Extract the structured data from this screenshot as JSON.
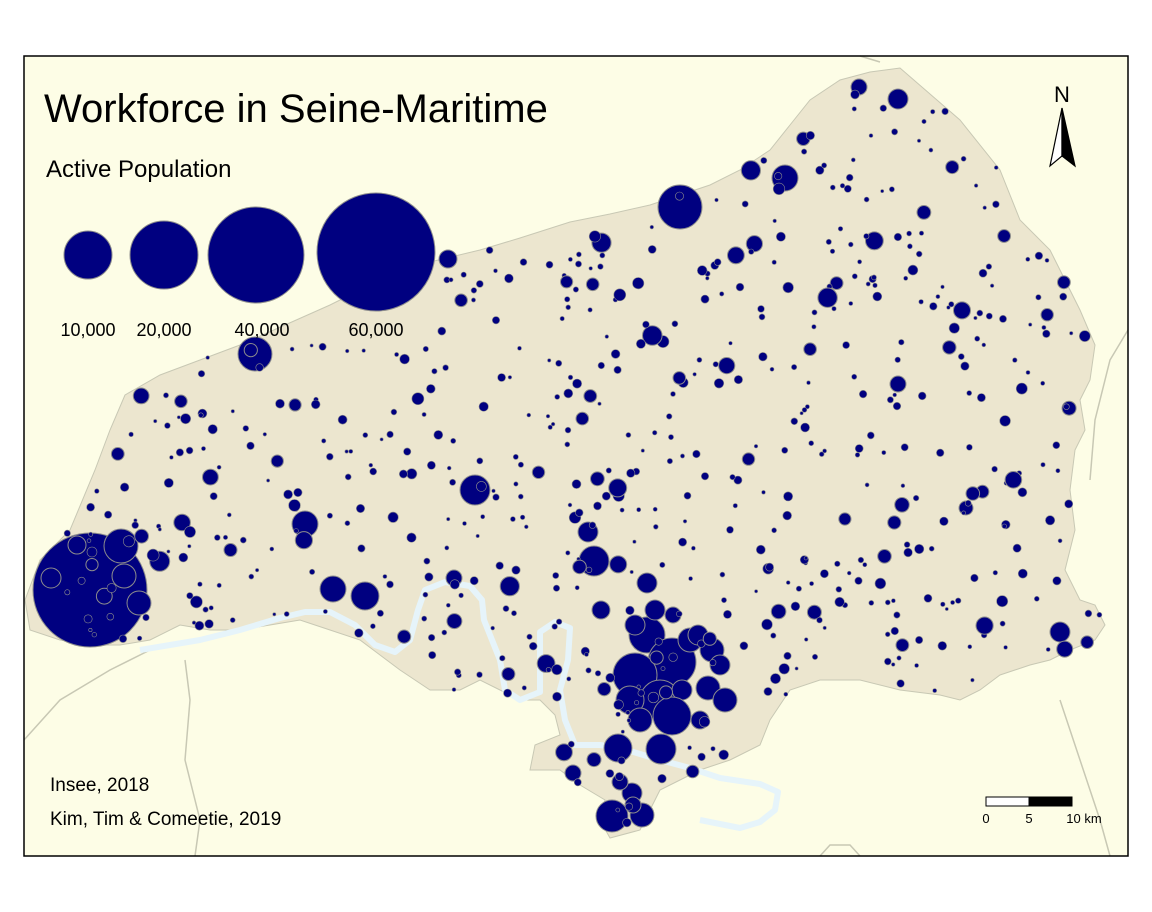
{
  "title": "Workforce in Seine-Maritime",
  "legend": {
    "title": "Active Population",
    "entries": [
      {
        "label": "10,000",
        "value": 10000
      },
      {
        "label": "20,000",
        "value": 20000
      },
      {
        "label": "40,000",
        "value": 40000
      },
      {
        "label": "60,000",
        "value": 60000
      }
    ]
  },
  "north_arrow": {
    "label": "N"
  },
  "scale_bar": {
    "labels": [
      "0",
      "5",
      "10 km"
    ]
  },
  "sources": {
    "line1": "Insee, 2018",
    "line2": "Kim, Tim & Comeetie, 2019"
  },
  "colors": {
    "background": "#fdfde6",
    "department_fill": "#ece6cf",
    "symbol_fill": "#000080",
    "symbol_stroke": "#8c8c8c",
    "river": "#e6f4fa",
    "neighbour_border": "#c8c8b4",
    "frame": "#000000"
  }
}
